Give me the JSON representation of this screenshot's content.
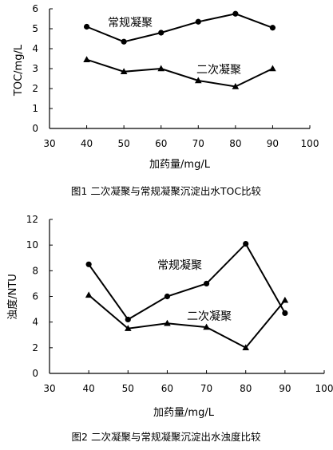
{
  "chart_data": [
    {
      "type": "line",
      "title": "",
      "caption": "图1   二次凝聚与常规凝聚沉淀出水TOC比较",
      "xlabel": "加药量/mg/L",
      "ylabel": "TOC/mg/L",
      "xlim": [
        30,
        100
      ],
      "ylim": [
        0,
        6
      ],
      "xticks": [
        30,
        40,
        50,
        60,
        70,
        80,
        90,
        100
      ],
      "yticks": [
        0,
        1,
        2,
        3,
        4,
        5,
        6
      ],
      "grid": false,
      "x": [
        40,
        50,
        60,
        70,
        80,
        90
      ],
      "series": [
        {
          "name": "常规凝聚",
          "marker": "circle",
          "values": [
            5.1,
            4.35,
            4.8,
            5.35,
            5.75,
            5.05
          ]
        },
        {
          "name": "二次凝聚",
          "marker": "triangle",
          "values": [
            3.45,
            2.85,
            3.0,
            2.4,
            2.1,
            3.0
          ]
        }
      ]
    },
    {
      "type": "line",
      "title": "",
      "caption": "图2   二次凝聚与常规凝聚沉淀出水浊度比较",
      "xlabel": "加药量/mg/L",
      "ylabel": "浊度/NTU",
      "xlim": [
        30,
        100
      ],
      "ylim": [
        0,
        12
      ],
      "xticks": [
        30,
        40,
        50,
        60,
        70,
        80,
        90,
        100
      ],
      "yticks": [
        0,
        2,
        4,
        6,
        8,
        10,
        12
      ],
      "grid": false,
      "x": [
        40,
        50,
        60,
        70,
        80,
        90
      ],
      "series": [
        {
          "name": "常规凝聚",
          "marker": "circle",
          "values": [
            8.5,
            4.2,
            6.0,
            7.0,
            10.1,
            4.7
          ]
        },
        {
          "name": "二次凝聚",
          "marker": "triangle",
          "values": [
            6.1,
            3.5,
            3.9,
            3.6,
            2.0,
            5.7
          ]
        }
      ]
    }
  ]
}
